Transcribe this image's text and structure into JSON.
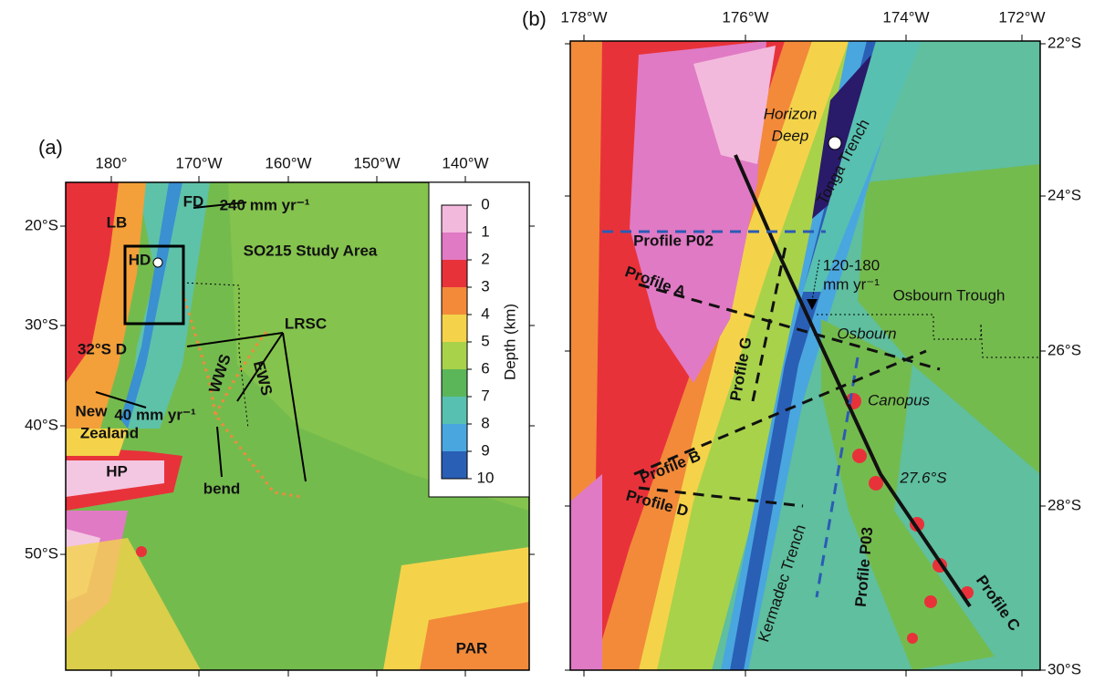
{
  "panel_a": {
    "label": "(a)",
    "lon_ticks": [
      "180°",
      "170°W",
      "160°W",
      "150°W",
      "140°W"
    ],
    "lat_ticks": [
      "20°S",
      "30°S",
      "40°S",
      "50°S"
    ],
    "annotations": [
      "FD",
      "240 mm yr⁻¹",
      "LB",
      "HD",
      "SO215 Study Area",
      "LRSC",
      "32°S D",
      "WWS",
      "EWS",
      "New",
      "Zealand",
      "40 mm yr⁻¹",
      "bend",
      "HP",
      "PAR"
    ],
    "colorbar": {
      "title": "Depth (km)",
      "ticks": [
        0,
        1,
        2,
        3,
        4,
        5,
        6,
        7,
        8,
        9,
        10
      ],
      "colors": [
        "#f3b9dc",
        "#e07ac4",
        "#e8323a",
        "#f28a3a",
        "#f4d34a",
        "#a8d24a",
        "#5bb65a",
        "#58c0b0",
        "#4aa6de",
        "#2a5fb6",
        "#2a1a6a"
      ]
    }
  },
  "panel_b": {
    "label": "(b)",
    "lon_ticks": [
      "178°W",
      "176°W",
      "174°W",
      "172°W"
    ],
    "lat_ticks": [
      "22°S",
      "24°S",
      "26°S",
      "28°S",
      "30°S"
    ],
    "annotations": [
      "Horizon",
      "Deep",
      "Tonga Trench",
      "Profile P02",
      "Profile A",
      "Profile G",
      "120-180",
      "mm yr⁻¹",
      "Osbourn Trough",
      "Osbourn",
      "Canopus",
      "Profile B",
      "Profile D",
      "27.6°S",
      "Kermadec Trench",
      "Profile P03",
      "Profile C"
    ]
  }
}
